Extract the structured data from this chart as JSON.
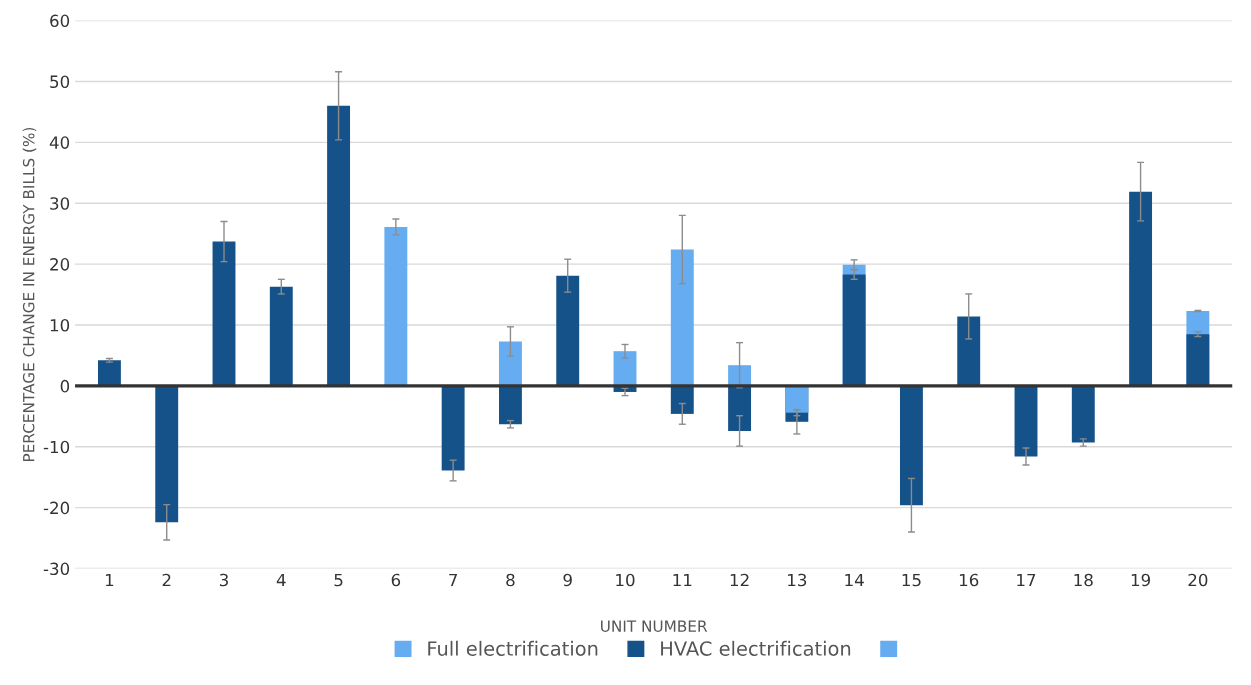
{
  "chart_data": {
    "type": "bar",
    "xlabel": "UNIT NUMBER",
    "ylabel": "PERCENTAGE CHANGE IN ENERGY BILLS (%)",
    "categories": [
      "1",
      "2",
      "3",
      "4",
      "5",
      "6",
      "7",
      "8",
      "9",
      "10",
      "11",
      "12",
      "13",
      "14",
      "15",
      "16",
      "17",
      "18",
      "19",
      "20"
    ],
    "series": [
      {
        "name": "Full electrification",
        "color": "#66acf0",
        "values": [
          null,
          null,
          null,
          null,
          null,
          26.1,
          null,
          7.3,
          null,
          5.7,
          22.4,
          3.4,
          null,
          19.9,
          null,
          null,
          null,
          null,
          null,
          12.3
        ],
        "errors": [
          null,
          null,
          null,
          null,
          null,
          1.3,
          null,
          2.4,
          null,
          1.1,
          5.6,
          3.7,
          null,
          0.8,
          null,
          null,
          null,
          null,
          null,
          0.1
        ]
      },
      {
        "name": "HVAC electrification",
        "color": "#16528a",
        "values": [
          4.2,
          -22.4,
          23.7,
          16.3,
          46.0,
          null,
          -13.9,
          -6.3,
          18.1,
          -1.0,
          -4.6,
          -7.4,
          -5.9,
          18.3,
          -19.6,
          11.4,
          -11.6,
          -9.3,
          31.9,
          8.5
        ],
        "errors": [
          0.3,
          2.9,
          3.3,
          1.2,
          5.6,
          null,
          1.7,
          0.6,
          2.7,
          0.6,
          1.7,
          2.5,
          2.0,
          0.8,
          4.4,
          3.7,
          1.4,
          0.6,
          4.8,
          0.4
        ]
      },
      {
        "color": "#66acf0",
        "values": [
          null,
          null,
          null,
          null,
          null,
          null,
          null,
          null,
          null,
          null,
          null,
          null,
          -4.4,
          null,
          null,
          null,
          null,
          null,
          null,
          null
        ],
        "errors": [
          null,
          null,
          null,
          null,
          null,
          null,
          null,
          null,
          null,
          null,
          null,
          null,
          0.5,
          null,
          null,
          null,
          null,
          null,
          null,
          null
        ]
      }
    ],
    "ylim": [
      -30,
      60
    ],
    "yticks": [
      -30,
      -20,
      -10,
      0,
      10,
      20,
      30,
      40,
      50,
      60
    ],
    "grid": "y",
    "legend": "bottom"
  }
}
